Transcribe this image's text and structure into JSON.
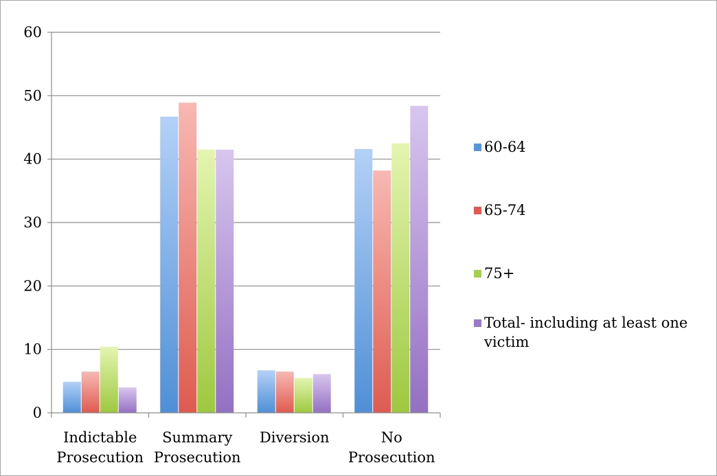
{
  "chart_data": {
    "type": "bar",
    "categories": [
      [
        "Indictable",
        "Prosecution"
      ],
      [
        "Summary",
        "Prosecution"
      ],
      [
        "Diversion"
      ],
      [
        "No",
        "Prosecution"
      ]
    ],
    "series": [
      {
        "name": "60-64",
        "values": [
          4.9,
          46.7,
          6.7,
          41.6
        ],
        "color_light": "#b3d1f7",
        "color_dark": "#4f8fd6"
      },
      {
        "name": "65-74",
        "values": [
          6.5,
          48.9,
          6.5,
          38.2
        ],
        "color_light": "#f8b8b2",
        "color_dark": "#de5b50"
      },
      {
        "name": "75+",
        "values": [
          10.4,
          41.5,
          5.5,
          42.5
        ],
        "color_light": "#e4f5b0",
        "color_dark": "#9dc83f"
      },
      {
        "name": "Total- including at least one victim",
        "values": [
          4.0,
          41.5,
          6.1,
          48.4
        ],
        "color_light": "#d8c6ef",
        "color_dark": "#9470c2"
      }
    ],
    "yticks": [
      "0",
      "10",
      "20",
      "30",
      "40",
      "50",
      "60"
    ],
    "ylim": [
      0,
      60
    ],
    "grid": true,
    "legend_position": "right"
  },
  "legend_colors": [
    "#5597dd",
    "#e5584f",
    "#a3d14a",
    "#9b78c8"
  ]
}
